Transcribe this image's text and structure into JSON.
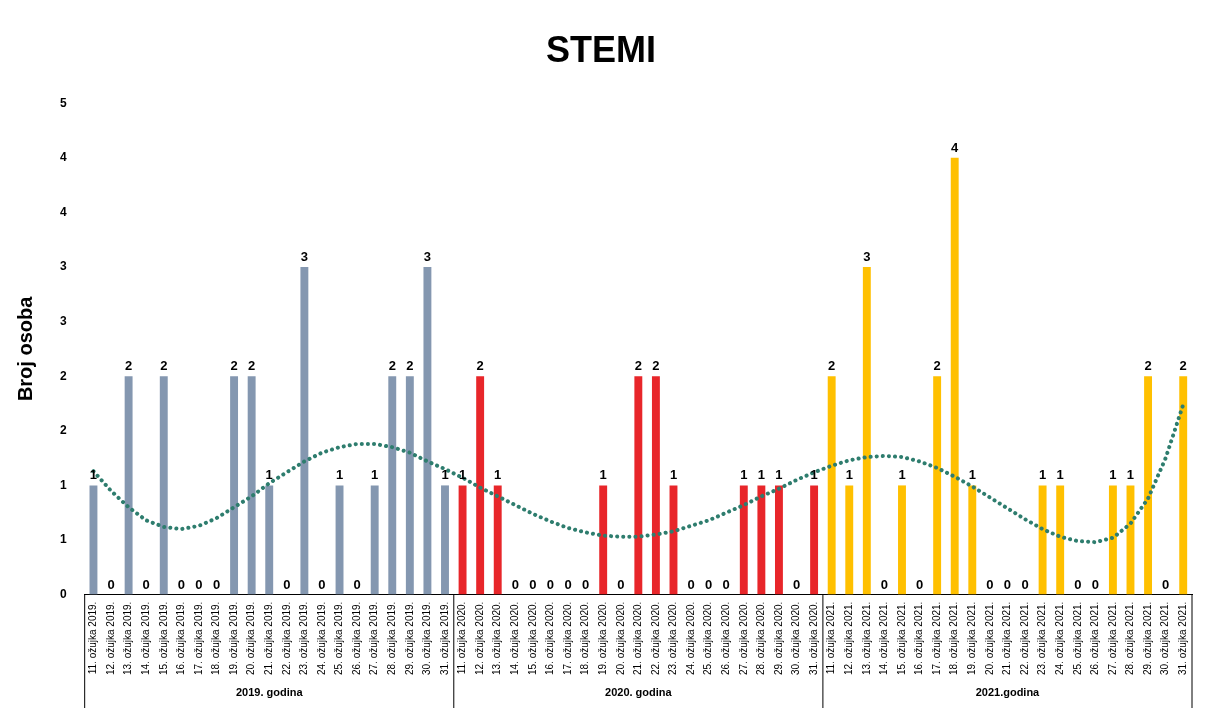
{
  "chart_data": {
    "type": "bar",
    "title": "STEMI",
    "ylabel": "Broj osoba",
    "categories": [
      "11. ožujka 2019.",
      "12. ožujka 2019.",
      "13. ožujka 2019.",
      "14. ožujka 2019.",
      "15. ožujka 2019.",
      "16. ožujka 2019.",
      "17. ožujka 2019.",
      "18. ožujka 2019.",
      "19. ožujka 2019.",
      "20. ožujka 2019.",
      "21. ožujka 2019.",
      "22. ožujka 2019.",
      "23. ožujka 2019.",
      "24. ožujka 2019.",
      "25. ožujka 2019.",
      "26. ožujka 2019.",
      "27. ožujka 2019.",
      "28. ožujka 2019.",
      "29. ožujka 2019.",
      "30. ožujka 2019.",
      "31. ožujka 2019.",
      "11. ožujka 2020.",
      "12. ožujka 2020.",
      "13. ožujka 2020.",
      "14. ožujka 2020.",
      "15. ožujka 2020.",
      "16. ožujka 2020.",
      "17. ožujka 2020.",
      "18. ožujka 2020.",
      "19. ožujka 2020.",
      "20. ožujka 2020.",
      "21. ožujka 2020.",
      "22. ožujka 2020.",
      "23. ožujka 2020.",
      "24. ožujka 2020.",
      "25. ožujka 2020.",
      "26. ožujka 2020.",
      "27. ožujka 2020.",
      "28. ožujka 2020.",
      "29. ožujka 2020.",
      "30. ožujka 2020.",
      "31. ožujka 2020.",
      "11. ožujka 2021.",
      "12. ožujka 2021.",
      "13. ožujka 2021.",
      "14. ožujka 2021.",
      "15. ožujka 2021.",
      "16. ožujka 2021.",
      "17. ožujka 2021.",
      "18. ožujka 2021.",
      "19. ožujka 2021.",
      "20. ožujka 2021.",
      "21. ožujka 2021.",
      "22. ožujka 2021.",
      "23. ožujka 2021.",
      "24. ožujka 2021.",
      "25. ožujka 2021.",
      "26. ožujka 2021.",
      "27. ožujka 2021.",
      "28. ožujka 2021.",
      "29. ožujka 2021.",
      "30. ožujka 2021.",
      "31. ožujka 2021."
    ],
    "series": [
      {
        "values": [
          1,
          0,
          2,
          0,
          2,
          0,
          0,
          0,
          2,
          2,
          1,
          0,
          3,
          0,
          1,
          0,
          1,
          2,
          2,
          3,
          1,
          1,
          2,
          1,
          0,
          0,
          0,
          0,
          0,
          1,
          0,
          2,
          2,
          1,
          0,
          0,
          0,
          1,
          1,
          1,
          0,
          1,
          2,
          1,
          3,
          0,
          1,
          0,
          2,
          4,
          1,
          0,
          0,
          0,
          1,
          1,
          0,
          0,
          1,
          1,
          2,
          0,
          2
        ],
        "colors": [
          "#8497b0",
          "#8497b0",
          "#8497b0",
          "#8497b0",
          "#8497b0",
          "#8497b0",
          "#8497b0",
          "#8497b0",
          "#8497b0",
          "#8497b0",
          "#8497b0",
          "#8497b0",
          "#8497b0",
          "#8497b0",
          "#8497b0",
          "#8497b0",
          "#8497b0",
          "#8497b0",
          "#8497b0",
          "#8497b0",
          "#8497b0",
          "#e8262a",
          "#e8262a",
          "#e8262a",
          "#e8262a",
          "#e8262a",
          "#e8262a",
          "#e8262a",
          "#e8262a",
          "#e8262a",
          "#e8262a",
          "#e8262a",
          "#e8262a",
          "#e8262a",
          "#e8262a",
          "#e8262a",
          "#e8262a",
          "#e8262a",
          "#e8262a",
          "#e8262a",
          "#e8262a",
          "#e8262a",
          "#ffc000",
          "#ffc000",
          "#ffc000",
          "#ffc000",
          "#ffc000",
          "#ffc000",
          "#ffc000",
          "#ffc000",
          "#ffc000",
          "#ffc000",
          "#ffc000",
          "#ffc000",
          "#ffc000",
          "#ffc000",
          "#ffc000",
          "#ffc000",
          "#ffc000",
          "#ffc000",
          "#ffc000",
          "#ffc000",
          "#ffc000"
        ],
        "data_labels": true
      },
      {
        "type": "line",
        "color": "#2e7d6e",
        "line_style": "dotted",
        "marker": "none",
        "values": [
          1.13,
          0.95,
          0.8,
          0.68,
          0.62,
          0.6,
          0.63,
          0.7,
          0.8,
          0.9,
          1.02,
          1.12,
          1.22,
          1.3,
          1.35,
          1.38,
          1.38,
          1.35,
          1.3,
          1.22,
          1.15,
          1.07,
          0.98,
          0.9,
          0.82,
          0.74,
          0.67,
          0.61,
          0.57,
          0.54,
          0.53,
          0.53,
          0.55,
          0.58,
          0.63,
          0.68,
          0.75,
          0.82,
          0.9,
          0.97,
          1.05,
          1.12,
          1.18,
          1.23,
          1.26,
          1.27,
          1.26,
          1.22,
          1.16,
          1.08,
          0.99,
          0.89,
          0.79,
          0.69,
          0.6,
          0.53,
          0.49,
          0.48,
          0.52,
          0.65,
          0.88,
          1.25,
          1.74
        ]
      }
    ],
    "ylim": [
      0,
      4.5
    ],
    "yticks": [
      0,
      {
        "value": 0.5,
        "label": "1"
      },
      1,
      {
        "value": 1.5,
        "label": "2"
      },
      2,
      {
        "value": 2.5,
        "label": "3"
      },
      3,
      {
        "value": 3.5,
        "label": "4"
      },
      4,
      {
        "value": 4.5,
        "label": "5"
      }
    ],
    "grid": false,
    "legend": false,
    "annotations": [
      "2019. godina",
      "2020. godina",
      "2021.godina"
    ]
  }
}
